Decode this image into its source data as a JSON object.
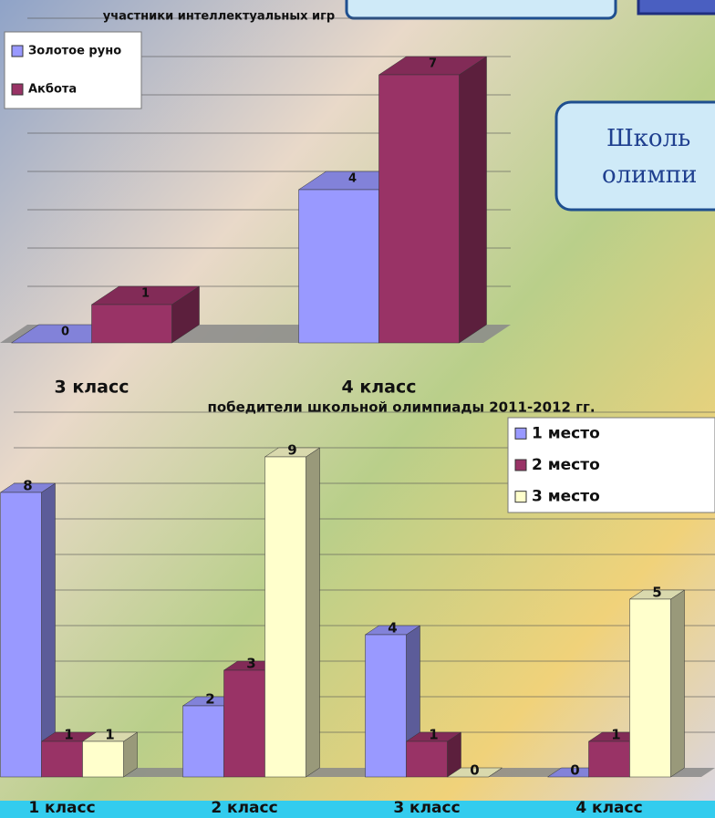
{
  "callouts": [
    "Школь",
    "олимпи"
  ],
  "chart_data": [
    {
      "type": "bar",
      "title": "участники интеллектуальных игр",
      "categories": [
        "3 класс",
        "4 класс"
      ],
      "series": [
        {
          "name": "Золотое руно",
          "color": "#9999ff",
          "values": [
            0,
            4
          ]
        },
        {
          "name": "Акбота",
          "color": "#993366",
          "values": [
            1,
            7
          ]
        }
      ],
      "ylim": [
        0,
        8
      ],
      "grid": true
    },
    {
      "type": "bar",
      "title": "победители школьной олимпиады 2011-2012 гг.",
      "categories": [
        "1 класс",
        "2 класс",
        "3 класс",
        "4 класс"
      ],
      "series": [
        {
          "name": "1 место",
          "color": "#9999ff",
          "values": [
            8,
            2,
            4,
            0
          ]
        },
        {
          "name": "2 место",
          "color": "#993366",
          "values": [
            1,
            3,
            1,
            1
          ]
        },
        {
          "name": "3 место",
          "color": "#ffffcc",
          "values": [
            1,
            9,
            0,
            5
          ]
        }
      ],
      "ylim": [
        0,
        10
      ],
      "grid": true
    }
  ]
}
